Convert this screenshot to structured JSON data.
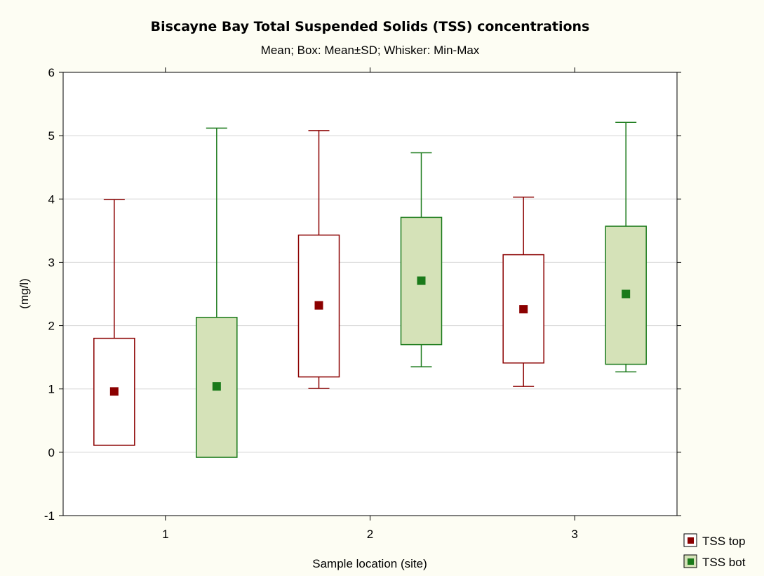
{
  "chart_data": {
    "type": "box",
    "title": "Biscayne Bay Total Suspended Solids  (TSS) concentrations",
    "subtitle": "Mean; Box: Mean±SD; Whisker: Min-Max",
    "xlabel": "Sample location (site)",
    "ylabel": "(mg/l)",
    "categories": [
      "1",
      "2",
      "3"
    ],
    "ylim": [
      -1,
      6
    ],
    "yticks": [
      "-1",
      "0",
      "1",
      "2",
      "3",
      "4",
      "5",
      "6"
    ],
    "grid": true,
    "legend_position": "bottom-right outside",
    "series": [
      {
        "name": "TSS top",
        "color": "#8b0000",
        "box_fill": "#ffffff",
        "mean": [
          0.96,
          2.32,
          2.26
        ],
        "box_low": [
          0.11,
          1.19,
          1.41
        ],
        "box_high": [
          1.8,
          3.43,
          3.12
        ],
        "min": [
          0.11,
          1.01,
          1.04
        ],
        "max": [
          3.99,
          5.08,
          4.03
        ]
      },
      {
        "name": "TSS bot",
        "color": "#1a7a1a",
        "box_fill": "#d5e2b8",
        "mean": [
          1.04,
          2.71,
          2.5
        ],
        "box_low": [
          -0.08,
          1.7,
          1.39
        ],
        "box_high": [
          2.13,
          3.71,
          3.57
        ],
        "min": [
          -0.08,
          1.35,
          1.27
        ],
        "max": [
          5.12,
          4.73,
          5.21
        ]
      }
    ]
  }
}
